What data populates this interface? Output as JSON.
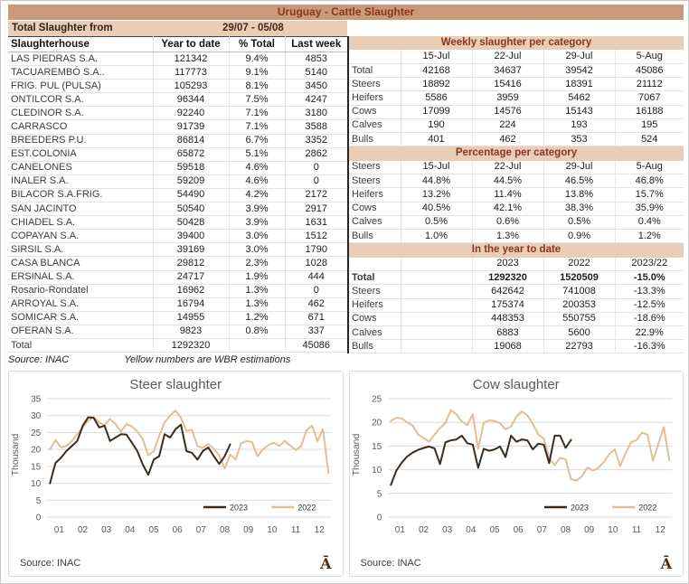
{
  "title": "Uruguay - Cattle Slaughter",
  "colors": {
    "accent_banner": "#c89a79",
    "accent_light": "#e9cdb6",
    "heading_text": "#8c3420",
    "line_2023": "#3a2b1e",
    "line_2022": "#e4bd92"
  },
  "left_table": {
    "period_label": "Total Slaughter from",
    "period_value": "29/07 - 05/08",
    "columns": [
      "Slaughterhouse",
      "Year to date",
      "% Total",
      "Last week"
    ],
    "rows": [
      [
        "LAS PIEDRAS S.A.",
        "121342",
        "9.4%",
        "4853"
      ],
      [
        "TACUAREMBÓ S.A..",
        "117773",
        "9.1%",
        "5140"
      ],
      [
        "FRIG. PUL (PULSA)",
        "105293",
        "8.1%",
        "3450"
      ],
      [
        "ONTILCOR S.A.",
        "96344",
        "7.5%",
        "4247"
      ],
      [
        "CLEDINOR S.A.",
        "92240",
        "7.1%",
        "3180"
      ],
      [
        "CARRASCO",
        "91739",
        "7.1%",
        "3588"
      ],
      [
        "BREEDERS P.U.",
        "86814",
        "6.7%",
        "3352"
      ],
      [
        "EST.COLONIA",
        "65872",
        "5.1%",
        "2862"
      ],
      [
        "CANELONES",
        "59518",
        "4.6%",
        "0"
      ],
      [
        "INALER S.A.",
        "59209",
        "4.6%",
        "0"
      ],
      [
        "BILACOR S.A.FRIG.",
        "54490",
        "4.2%",
        "2172"
      ],
      [
        "SAN JACINTO",
        "50540",
        "3.9%",
        "2917"
      ],
      [
        "CHIADEL S.A.",
        "50428",
        "3.9%",
        "1631"
      ],
      [
        "COPAYAN S.A.",
        "39400",
        "3.0%",
        "1512"
      ],
      [
        "SIRSIL S.A.",
        "39169",
        "3.0%",
        "1790"
      ],
      [
        "CASA BLANCA",
        "29812",
        "2.3%",
        "1028"
      ],
      [
        "ERSINAL S.A.",
        "24717",
        "1.9%",
        "444"
      ],
      [
        "Rosario-Rondatel",
        "16962",
        "1.3%",
        "0"
      ],
      [
        "ARROYAL S.A.",
        "16794",
        "1.3%",
        "462"
      ],
      [
        "SOMICAR S.A.",
        "14955",
        "1.2%",
        "671"
      ],
      [
        "OFERAN S.A.",
        "9823",
        "0.8%",
        "337"
      ]
    ],
    "total_rows": [
      [
        "Total",
        "1292320",
        "",
        "45086"
      ]
    ],
    "source": "Source: INAC",
    "footnote": "Yellow numbers are WBR estimations"
  },
  "weekly": {
    "title": "Weekly slaughter per category",
    "columns": [
      "",
      "15-Jul",
      "22-Jul",
      "29-Jul",
      "5-Aug"
    ],
    "rows": [
      [
        "Total",
        "42168",
        "34637",
        "39542",
        "45086"
      ],
      [
        "Steers",
        "18892",
        "15416",
        "18391",
        "21112"
      ],
      [
        "Heifers",
        "5586",
        "3959",
        "5462",
        "7067"
      ],
      [
        "Cows",
        "17099",
        "14576",
        "15143",
        "16188"
      ],
      [
        "Calves",
        "190",
        "224",
        "193",
        "195"
      ],
      [
        "Bulls",
        "401",
        "462",
        "353",
        "524"
      ]
    ]
  },
  "percentage": {
    "title": "Percentage per category",
    "columns": [
      "Steers",
      "15-Jul",
      "22-Jul",
      "29-Jul",
      "5-Aug"
    ],
    "rows": [
      [
        "Steers",
        "44.8%",
        "44.5%",
        "46.5%",
        "46.8%"
      ],
      [
        "Heifers",
        "13.2%",
        "11.4%",
        "13.8%",
        "15.7%"
      ],
      [
        "Cows",
        "40.5%",
        "42.1%",
        "38.3%",
        "35.9%"
      ],
      [
        "Calves",
        "0.5%",
        "0.6%",
        "0.5%",
        "0.4%"
      ],
      [
        "Bulls",
        "1.0%",
        "1.3%",
        "0.9%",
        "1.2%"
      ]
    ]
  },
  "ytd": {
    "title": "In the year to date",
    "columns": [
      "",
      "",
      "2023",
      "2022",
      "2023/22"
    ],
    "rows": [
      [
        "Total",
        "",
        "1292320",
        "1520509",
        "-15.0%"
      ],
      [
        "Steers",
        "",
        "642642",
        "741008",
        "-13.3%"
      ],
      [
        "Heifers",
        "",
        "175374",
        "200353",
        "-12.5%"
      ],
      [
        "Cows",
        "",
        "448353",
        "550755",
        "-18.6%"
      ],
      [
        "Calves",
        "",
        "6883",
        "5600",
        "22.9%"
      ],
      [
        "Bulls",
        "",
        "19068",
        "22793",
        "-16.3%"
      ]
    ]
  },
  "brand_glyph": "Ā",
  "chart_data": [
    {
      "type": "line",
      "title": "Steer slaughter",
      "ylabel": "Thousand",
      "ylim": [
        0,
        35
      ],
      "ytick_step": 5,
      "grid": true,
      "legend_position": "bottom-right",
      "x_unit": "week-of-year",
      "x_months": [
        "01",
        "02",
        "03",
        "04",
        "05",
        "06",
        "07",
        "08",
        "09",
        "10",
        "11",
        "12"
      ],
      "source": "Source: INAC",
      "series": [
        {
          "name": "2023",
          "color": "#3a2b1e",
          "values": [
            10,
            16,
            17.5,
            19.5,
            21,
            22.5,
            27,
            29.5,
            29.4,
            26.5,
            27,
            22.5,
            23.5,
            24.5,
            24.4,
            22,
            19.5,
            15.5,
            12.5,
            17,
            18,
            24.5,
            23.5,
            26,
            27.3,
            19.5,
            19,
            17,
            19.5,
            20.6,
            18,
            15.7,
            18,
            21.5
          ]
        },
        {
          "name": "2022",
          "color": "#e4bd92",
          "values": [
            20,
            22.8,
            20.6,
            21,
            22.5,
            24.5,
            26.5,
            28.5,
            29.5,
            28,
            27.2,
            29,
            27.5,
            25.3,
            27.5,
            26.8,
            25.3,
            23,
            18.3,
            19.5,
            24,
            28,
            30,
            31.5,
            29.3,
            25.5,
            25.8,
            21,
            20.5,
            21.6,
            20.2,
            18.2,
            14.4,
            18.5,
            17,
            21.8,
            22.5,
            22.2,
            18,
            20,
            21.3,
            22,
            21,
            22.5,
            21.2,
            19.8,
            21,
            25.7,
            27,
            22.4,
            26,
            13
          ]
        }
      ]
    },
    {
      "type": "line",
      "title": "Cow slaughter",
      "ylabel": "Thousand",
      "ylim": [
        0,
        25
      ],
      "ytick_step": 5,
      "grid": true,
      "legend_position": "bottom-right",
      "x_unit": "week-of-year",
      "x_months": [
        "01",
        "02",
        "03",
        "04",
        "05",
        "06",
        "07",
        "08",
        "09",
        "10",
        "11",
        "12"
      ],
      "source": "Source: INAC",
      "series": [
        {
          "name": "2023",
          "color": "#3a2b1e",
          "values": [
            6.8,
            9.8,
            11.5,
            12.8,
            13.6,
            14.2,
            14.6,
            14.9,
            14.5,
            11.2,
            15.8,
            16.2,
            16.4,
            17.2,
            15.6,
            15.3,
            10.4,
            14.4,
            14,
            14.3,
            14.9,
            12.7,
            17.2,
            15.9,
            16.4,
            16.2,
            14.3,
            15.5,
            15.3,
            11.4,
            17.2,
            17.2,
            14.6,
            16.3
          ]
        },
        {
          "name": "2022",
          "color": "#e4bd92",
          "values": [
            20.3,
            21,
            20.8,
            20,
            19.3,
            17.4,
            16.7,
            15.9,
            17.4,
            18.8,
            19.9,
            22.6,
            21.7,
            20.2,
            19.4,
            21.7,
            14.4,
            19.9,
            20.4,
            20.3,
            19.8,
            18.5,
            19.1,
            21.2,
            22.3,
            21.5,
            19.7,
            17.4,
            16.6,
            12.4,
            11,
            12.5,
            12.2,
            8,
            7.7,
            8.6,
            10.5,
            9.8,
            10.4,
            11.6,
            13.3,
            14.3,
            10.8,
            13.5,
            15.8,
            16.3,
            17.8,
            17.4,
            11.9,
            15.5,
            19,
            12
          ]
        }
      ]
    }
  ]
}
